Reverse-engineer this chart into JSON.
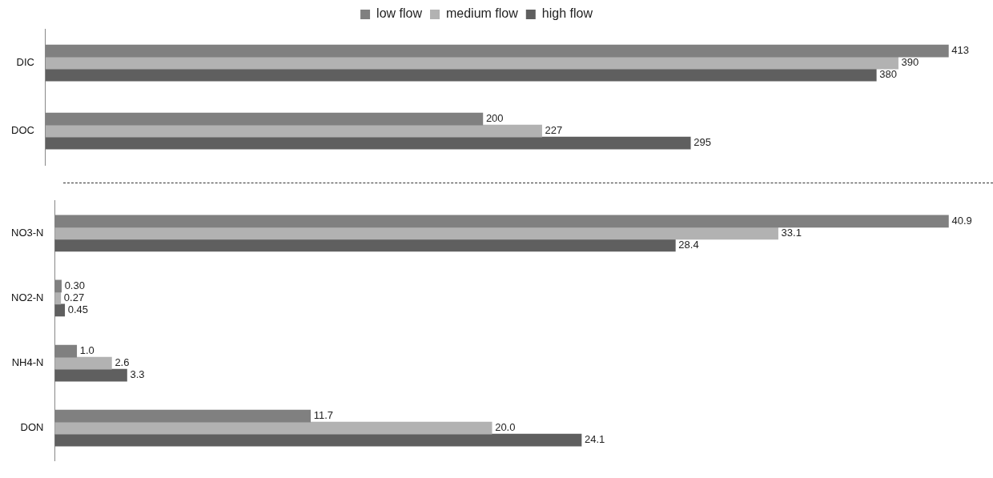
{
  "chart_data": [
    {
      "type": "bar",
      "orientation": "horizontal",
      "legend": "top",
      "categories": [
        "DIC",
        "DOC"
      ],
      "series": [
        {
          "name": "low flow",
          "color": "#808080",
          "values": [
            413,
            200
          ],
          "value_labels": [
            "413",
            "200"
          ]
        },
        {
          "name": "medium flow",
          "color": "#b2b2b2",
          "values": [
            390,
            227
          ],
          "value_labels": [
            "390",
            "227"
          ]
        },
        {
          "name": "high flow",
          "color": "#5f5f5f",
          "values": [
            380,
            295
          ],
          "value_labels": [
            "380",
            "295"
          ]
        }
      ],
      "tick_labels": "y",
      "grid": false
    },
    {
      "type": "bar",
      "orientation": "horizontal",
      "legend": false,
      "categories": [
        "NO3-N",
        "NO2-N",
        "NH4-N",
        "DON"
      ],
      "series": [
        {
          "color": "#808080",
          "values": [
            40.9,
            0.3,
            1.0,
            11.7
          ],
          "value_labels": [
            "40.9",
            "0.30",
            "1.0",
            "11.7"
          ]
        },
        {
          "color": "#b2b2b2",
          "values": [
            33.1,
            0.27,
            2.6,
            20.0
          ],
          "value_labels": [
            "33.1",
            "0.27",
            "2.6",
            "20.0"
          ]
        },
        {
          "color": "#5f5f5f",
          "values": [
            28.4,
            0.45,
            3.3,
            24.1
          ],
          "value_labels": [
            "28.4",
            "0.45",
            "3.3",
            "24.1"
          ]
        }
      ],
      "tick_labels": "y",
      "grid": false
    }
  ]
}
